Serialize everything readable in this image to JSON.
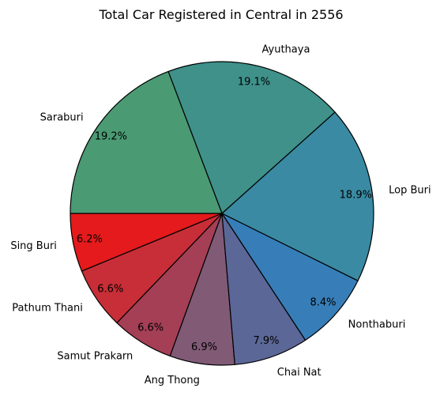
{
  "chart_data": {
    "type": "pie",
    "title": "Total Car Registered in Central in 2556",
    "slices": [
      {
        "label": "Sing Buri",
        "value": 6.2,
        "pct_label": "6.2%",
        "color": "#e41a1c"
      },
      {
        "label": "Pathum Thani",
        "value": 6.6,
        "pct_label": "6.6%",
        "color": "#c82e37"
      },
      {
        "label": "Samut Prakarn",
        "value": 6.6,
        "pct_label": "6.6%",
        "color": "#a43f56"
      },
      {
        "label": "Ang Thong",
        "value": 6.9,
        "pct_label": "6.9%",
        "color": "#815a76"
      },
      {
        "label": "Chai Nat",
        "value": 7.9,
        "pct_label": "7.9%",
        "color": "#5b6797"
      },
      {
        "label": "Nonthaburi",
        "value": 8.4,
        "pct_label": "8.4%",
        "color": "#377eb8"
      },
      {
        "label": "Lop Buri",
        "value": 18.9,
        "pct_label": "18.9%",
        "color": "#3a8aa3"
      },
      {
        "label": "Ayuthaya",
        "value": 19.1,
        "pct_label": "19.1%",
        "color": "#3f918a"
      },
      {
        "label": "Saraburi",
        "value": 19.2,
        "pct_label": "19.2%",
        "color": "#4a9a73"
      }
    ],
    "start_angle_deg": 180,
    "direction": "counterclockwise",
    "edge_color": "#000000"
  }
}
